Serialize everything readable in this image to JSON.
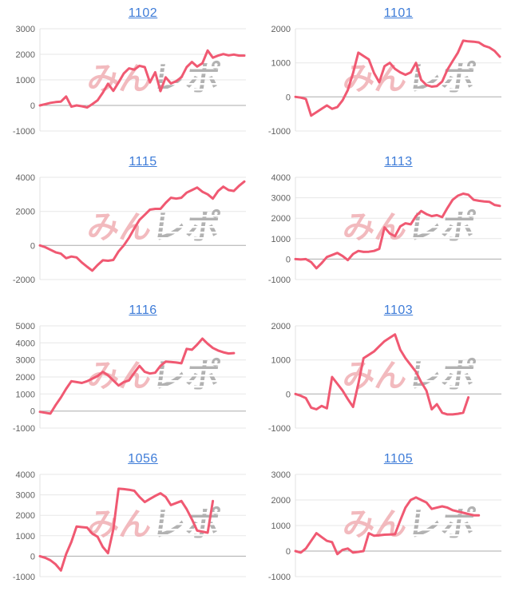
{
  "page": {
    "background": "#ffffff"
  },
  "watermark": {
    "pink_text": "みん",
    "gray_text": "レポ"
  },
  "colors": {
    "series_line": "#f05972",
    "title_link": "#3e7cd8",
    "grid_line": "#e7e7e7",
    "zero_line": "#ababab",
    "axis_line": "#e2e2e2",
    "tick_label": "#616161",
    "watermark_pink": "#efa9af",
    "watermark_gray": "#a0a0a0"
  },
  "chart_data": [
    {
      "type": "line",
      "title": "1102",
      "xlabel": "",
      "ylabel": "",
      "ylim": [
        -1000,
        3000
      ],
      "ticks": [
        3000,
        2000,
        1000,
        0,
        -1000
      ],
      "x_slots": 40,
      "grid": "horizontal",
      "legend": "none",
      "values": [
        0,
        50,
        100,
        130,
        150,
        350,
        -50,
        0,
        -30,
        -80,
        50,
        200,
        500,
        850,
        570,
        900,
        1250,
        1450,
        1400,
        1550,
        1500,
        900,
        1300,
        560,
        1100,
        860,
        950,
        1100,
        1500,
        1700,
        1520,
        1650,
        2150,
        1870,
        1950,
        2010,
        1960,
        1990,
        1950,
        1950
      ]
    },
    {
      "type": "line",
      "title": "1101",
      "xlabel": "",
      "ylabel": "",
      "ylim": [
        -1000,
        2000
      ],
      "ticks": [
        2000,
        1000,
        0,
        -1000
      ],
      "x_slots": 40,
      "grid": "horizontal",
      "legend": "none",
      "values": [
        0,
        -20,
        -60,
        -550,
        -450,
        -350,
        -250,
        -350,
        -300,
        -100,
        200,
        700,
        1300,
        1200,
        1100,
        700,
        430,
        900,
        1000,
        820,
        720,
        650,
        720,
        1000,
        500,
        350,
        300,
        320,
        450,
        800,
        1050,
        1300,
        1650,
        1630,
        1620,
        1600,
        1500,
        1450,
        1350,
        1180
      ]
    },
    {
      "type": "line",
      "title": "1115",
      "xlabel": "",
      "ylabel": "",
      "ylim": [
        -2000,
        4000
      ],
      "ticks": [
        4000,
        2000,
        0,
        -2000
      ],
      "x_slots": 40,
      "grid": "horizontal",
      "legend": "none",
      "values": [
        0,
        -100,
        -250,
        -400,
        -480,
        -750,
        -650,
        -700,
        -1000,
        -1250,
        -1480,
        -1150,
        -870,
        -900,
        -850,
        -350,
        0,
        450,
        1000,
        1500,
        1800,
        2100,
        2150,
        2150,
        2500,
        2800,
        2750,
        2800,
        3100,
        3250,
        3400,
        3150,
        3000,
        2750,
        3200,
        3450,
        3250,
        3200,
        3500,
        3750
      ]
    },
    {
      "type": "line",
      "title": "1113",
      "xlabel": "",
      "ylabel": "",
      "ylim": [
        -1000,
        4000
      ],
      "ticks": [
        4000,
        3000,
        2000,
        1000,
        0,
        -1000
      ],
      "x_slots": 40,
      "grid": "horizontal",
      "legend": "none",
      "values": [
        0,
        -20,
        0,
        -150,
        -450,
        -200,
        100,
        200,
        300,
        150,
        -50,
        250,
        400,
        350,
        360,
        400,
        500,
        1550,
        1250,
        1120,
        1600,
        1750,
        1700,
        2100,
        2350,
        2200,
        2100,
        2150,
        2050,
        2500,
        2900,
        3100,
        3200,
        3150,
        2900,
        2850,
        2820,
        2800,
        2650,
        2600
      ]
    },
    {
      "type": "line",
      "title": "1116",
      "xlabel": "",
      "ylabel": "",
      "ylim": [
        -1000,
        5000
      ],
      "ticks": [
        5000,
        4000,
        3000,
        2000,
        1000,
        0,
        -1000
      ],
      "x_slots": 40,
      "grid": "horizontal",
      "legend": "none",
      "values": [
        -50,
        -100,
        -150,
        350,
        800,
        1300,
        1750,
        1700,
        1650,
        1750,
        1900,
        2050,
        2300,
        2100,
        1800,
        1500,
        1700,
        1800,
        2250,
        2650,
        2300,
        2200,
        2250,
        2650,
        2900,
        2880,
        2850,
        2800,
        3650,
        3600,
        3900,
        4250,
        3950,
        3700,
        3550,
        3450,
        3380,
        3400
      ]
    },
    {
      "type": "line",
      "title": "1103",
      "xlabel": "",
      "ylabel": "",
      "ylim": [
        -1000,
        2000
      ],
      "ticks": [
        2000,
        1000,
        0,
        -1000
      ],
      "x_slots": 40,
      "grid": "horizontal",
      "legend": "none",
      "values": [
        0,
        -50,
        -120,
        -400,
        -450,
        -350,
        -420,
        500,
        300,
        100,
        -150,
        -380,
        300,
        1050,
        1150,
        1250,
        1400,
        1550,
        1650,
        1750,
        1300,
        1050,
        850,
        650,
        350,
        100,
        -450,
        -300,
        -550,
        -600,
        -600,
        -580,
        -550,
        -100
      ]
    },
    {
      "type": "line",
      "title": "1056",
      "xlabel": "",
      "ylabel": "",
      "ylim": [
        -1000,
        4000
      ],
      "ticks": [
        4000,
        3000,
        2000,
        1000,
        0,
        -1000
      ],
      "x_slots": 40,
      "grid": "horizontal",
      "legend": "none",
      "values": [
        0,
        -80,
        -200,
        -400,
        -700,
        100,
        700,
        1450,
        1420,
        1400,
        1100,
        950,
        450,
        150,
        1300,
        3300,
        3280,
        3250,
        3200,
        2900,
        2650,
        2800,
        2950,
        3080,
        2900,
        2500,
        2600,
        2700,
        2300,
        1800,
        1250,
        1200,
        1150,
        2700
      ]
    },
    {
      "type": "line",
      "title": "1105",
      "xlabel": "",
      "ylabel": "",
      "ylim": [
        -1000,
        3000
      ],
      "ticks": [
        3000,
        2000,
        1000,
        0,
        -1000
      ],
      "x_slots": 40,
      "grid": "horizontal",
      "legend": "none",
      "values": [
        0,
        -60,
        100,
        400,
        700,
        550,
        400,
        350,
        -120,
        50,
        100,
        -60,
        -30,
        0,
        700,
        600,
        620,
        640,
        650,
        660,
        1200,
        1700,
        2000,
        2100,
        2000,
        1900,
        1650,
        1700,
        1750,
        1700,
        1600,
        1550,
        1500,
        1450,
        1400,
        1400
      ]
    }
  ]
}
